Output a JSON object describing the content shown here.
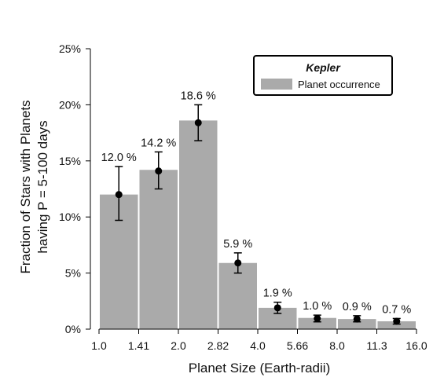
{
  "chart_data": {
    "type": "bar",
    "title": "",
    "xlabel": "Planet Size (Earth-radii)",
    "ylabel_lines": [
      "Fraction of Stars with Planets",
      "having P = 5-100 days"
    ],
    "x_ticks": [
      "1.0",
      "1.41",
      "2.0",
      "2.82",
      "4.0",
      "5.66",
      "8.0",
      "11.3",
      "16.0"
    ],
    "y_ticks": [
      "0%",
      "5%",
      "10%",
      "15%",
      "20%",
      "25%"
    ],
    "ylim": [
      0,
      25
    ],
    "bin_edges": [
      1.0,
      1.41,
      2.0,
      2.82,
      4.0,
      5.66,
      8.0,
      11.3,
      16.0
    ],
    "bar_color": "#aaaaaa",
    "legend": {
      "title": "Kepler",
      "entries": [
        "Planet occurrence"
      ],
      "position": "top-right"
    },
    "series": [
      {
        "name": "Planet occurrence",
        "values": [
          12.0,
          14.2,
          18.6,
          5.9,
          1.9,
          1.0,
          0.9,
          0.7
        ],
        "points": [
          12.0,
          14.1,
          18.4,
          5.9,
          1.9,
          0.95,
          0.9,
          0.7
        ],
        "err_low": [
          9.7,
          12.5,
          16.8,
          5.0,
          1.4,
          0.65,
          0.65,
          0.45
        ],
        "err_high": [
          14.5,
          15.8,
          20.0,
          6.8,
          2.4,
          1.25,
          1.2,
          0.95
        ],
        "labels": [
          "12.0 %",
          "14.2 %",
          "18.6 %",
          "5.9 %",
          "1.9 %",
          "1.0 %",
          "0.9 %",
          "0.7 %"
        ]
      }
    ]
  }
}
